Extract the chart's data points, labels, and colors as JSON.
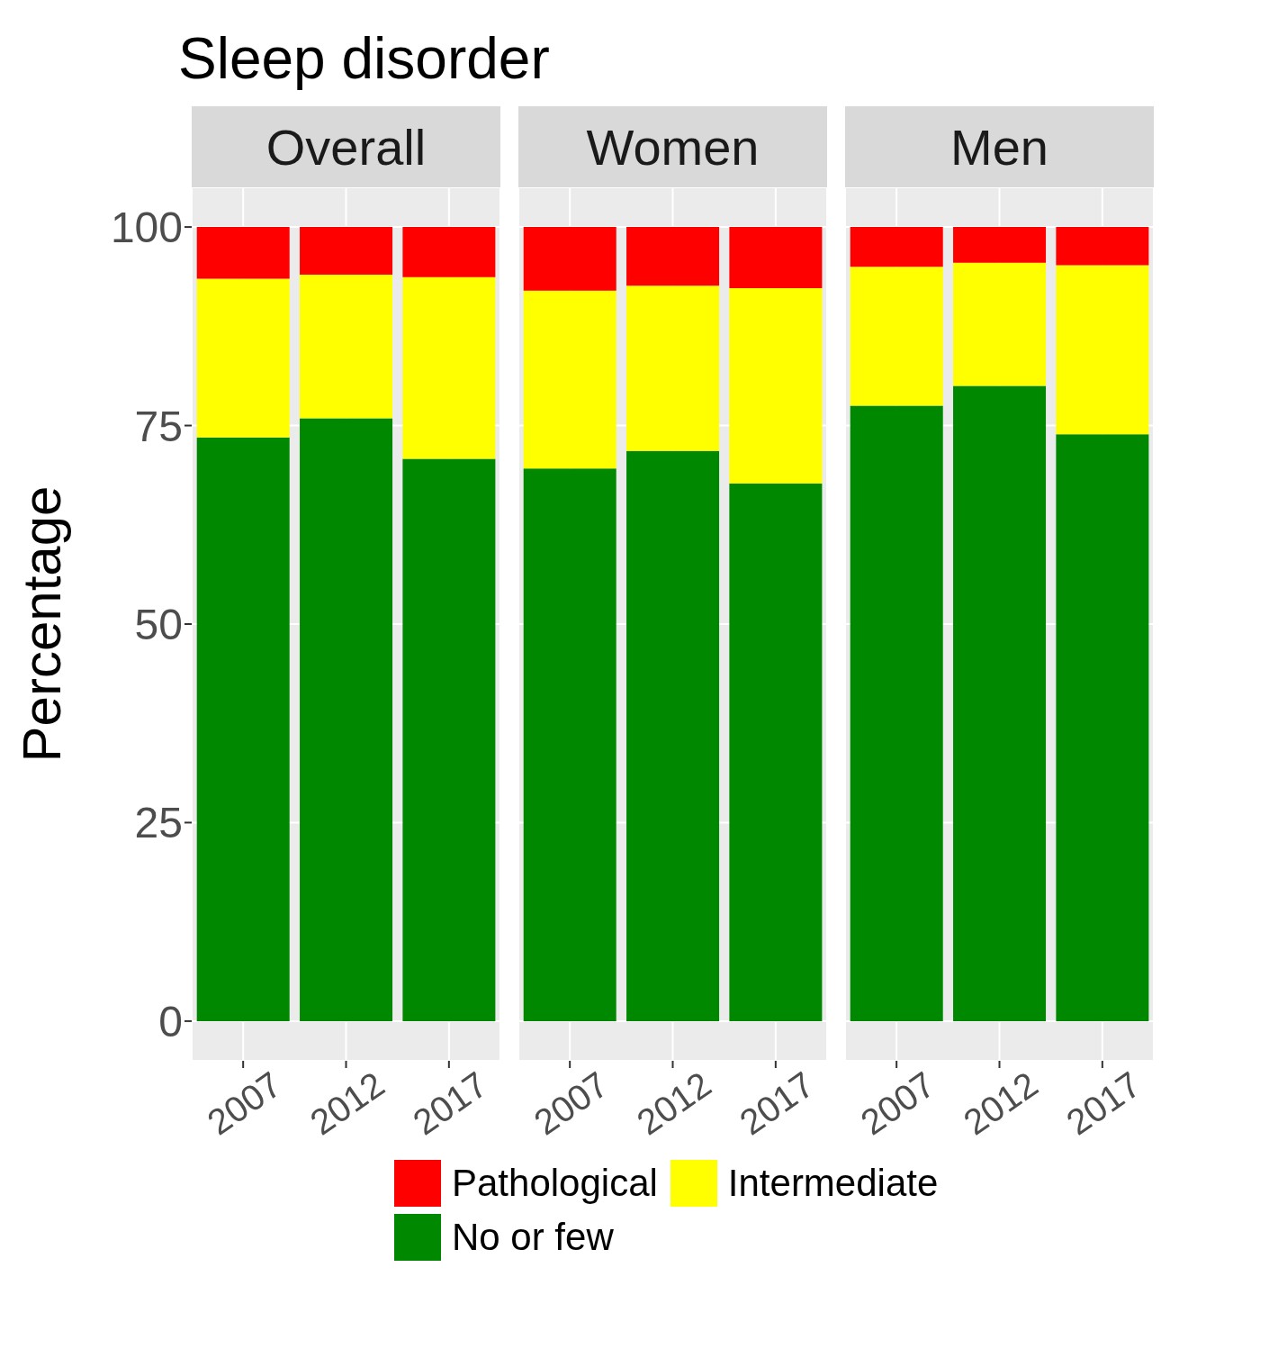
{
  "chart_data": [
    {
      "type": "bar",
      "title": "Sleep disorder",
      "subtitle": "Overall",
      "ylabel": "Percentage",
      "categories": [
        "2007",
        "2012",
        "2017"
      ],
      "stacked": true,
      "grid": true,
      "legend": "bottom",
      "ylim": [
        -5,
        105
      ],
      "yticks": [
        0,
        25,
        50,
        75,
        100
      ],
      "series": [
        {
          "name": "No or few",
          "color": "#008800",
          "values": [
            73.5,
            75.9,
            70.8
          ]
        },
        {
          "name": "Intermediate",
          "color": "#ffff00",
          "values": [
            20.0,
            18.1,
            22.9
          ]
        },
        {
          "name": "Pathological",
          "color": "#ff0000",
          "values": [
            6.5,
            6.0,
            6.3
          ]
        }
      ]
    },
    {
      "type": "bar",
      "subtitle": "Women",
      "categories": [
        "2007",
        "2012",
        "2017"
      ],
      "stacked": true,
      "grid": true,
      "tick_labels": "x",
      "ylim": [
        -5,
        105
      ],
      "yticks": [
        0,
        25,
        50,
        75,
        100
      ],
      "series": [
        {
          "color": "#008800",
          "values": [
            69.6,
            71.8,
            67.7
          ]
        },
        {
          "color": "#ffff00",
          "values": [
            22.4,
            20.8,
            24.6
          ]
        },
        {
          "color": "#ff0000",
          "values": [
            8.0,
            7.4,
            7.7
          ]
        }
      ]
    },
    {
      "type": "bar",
      "subtitle": "Men",
      "categories": [
        "2007",
        "2012",
        "2017"
      ],
      "stacked": true,
      "grid": true,
      "tick_labels": "x",
      "ylim": [
        -5,
        105
      ],
      "yticks": [
        0,
        25,
        50,
        75,
        100
      ],
      "series": [
        {
          "color": "#008800",
          "values": [
            77.5,
            80.0,
            73.9
          ]
        },
        {
          "color": "#ffff00",
          "values": [
            17.5,
            15.5,
            21.3
          ]
        },
        {
          "color": "#ff0000",
          "values": [
            5.0,
            4.5,
            4.8
          ]
        }
      ]
    }
  ]
}
